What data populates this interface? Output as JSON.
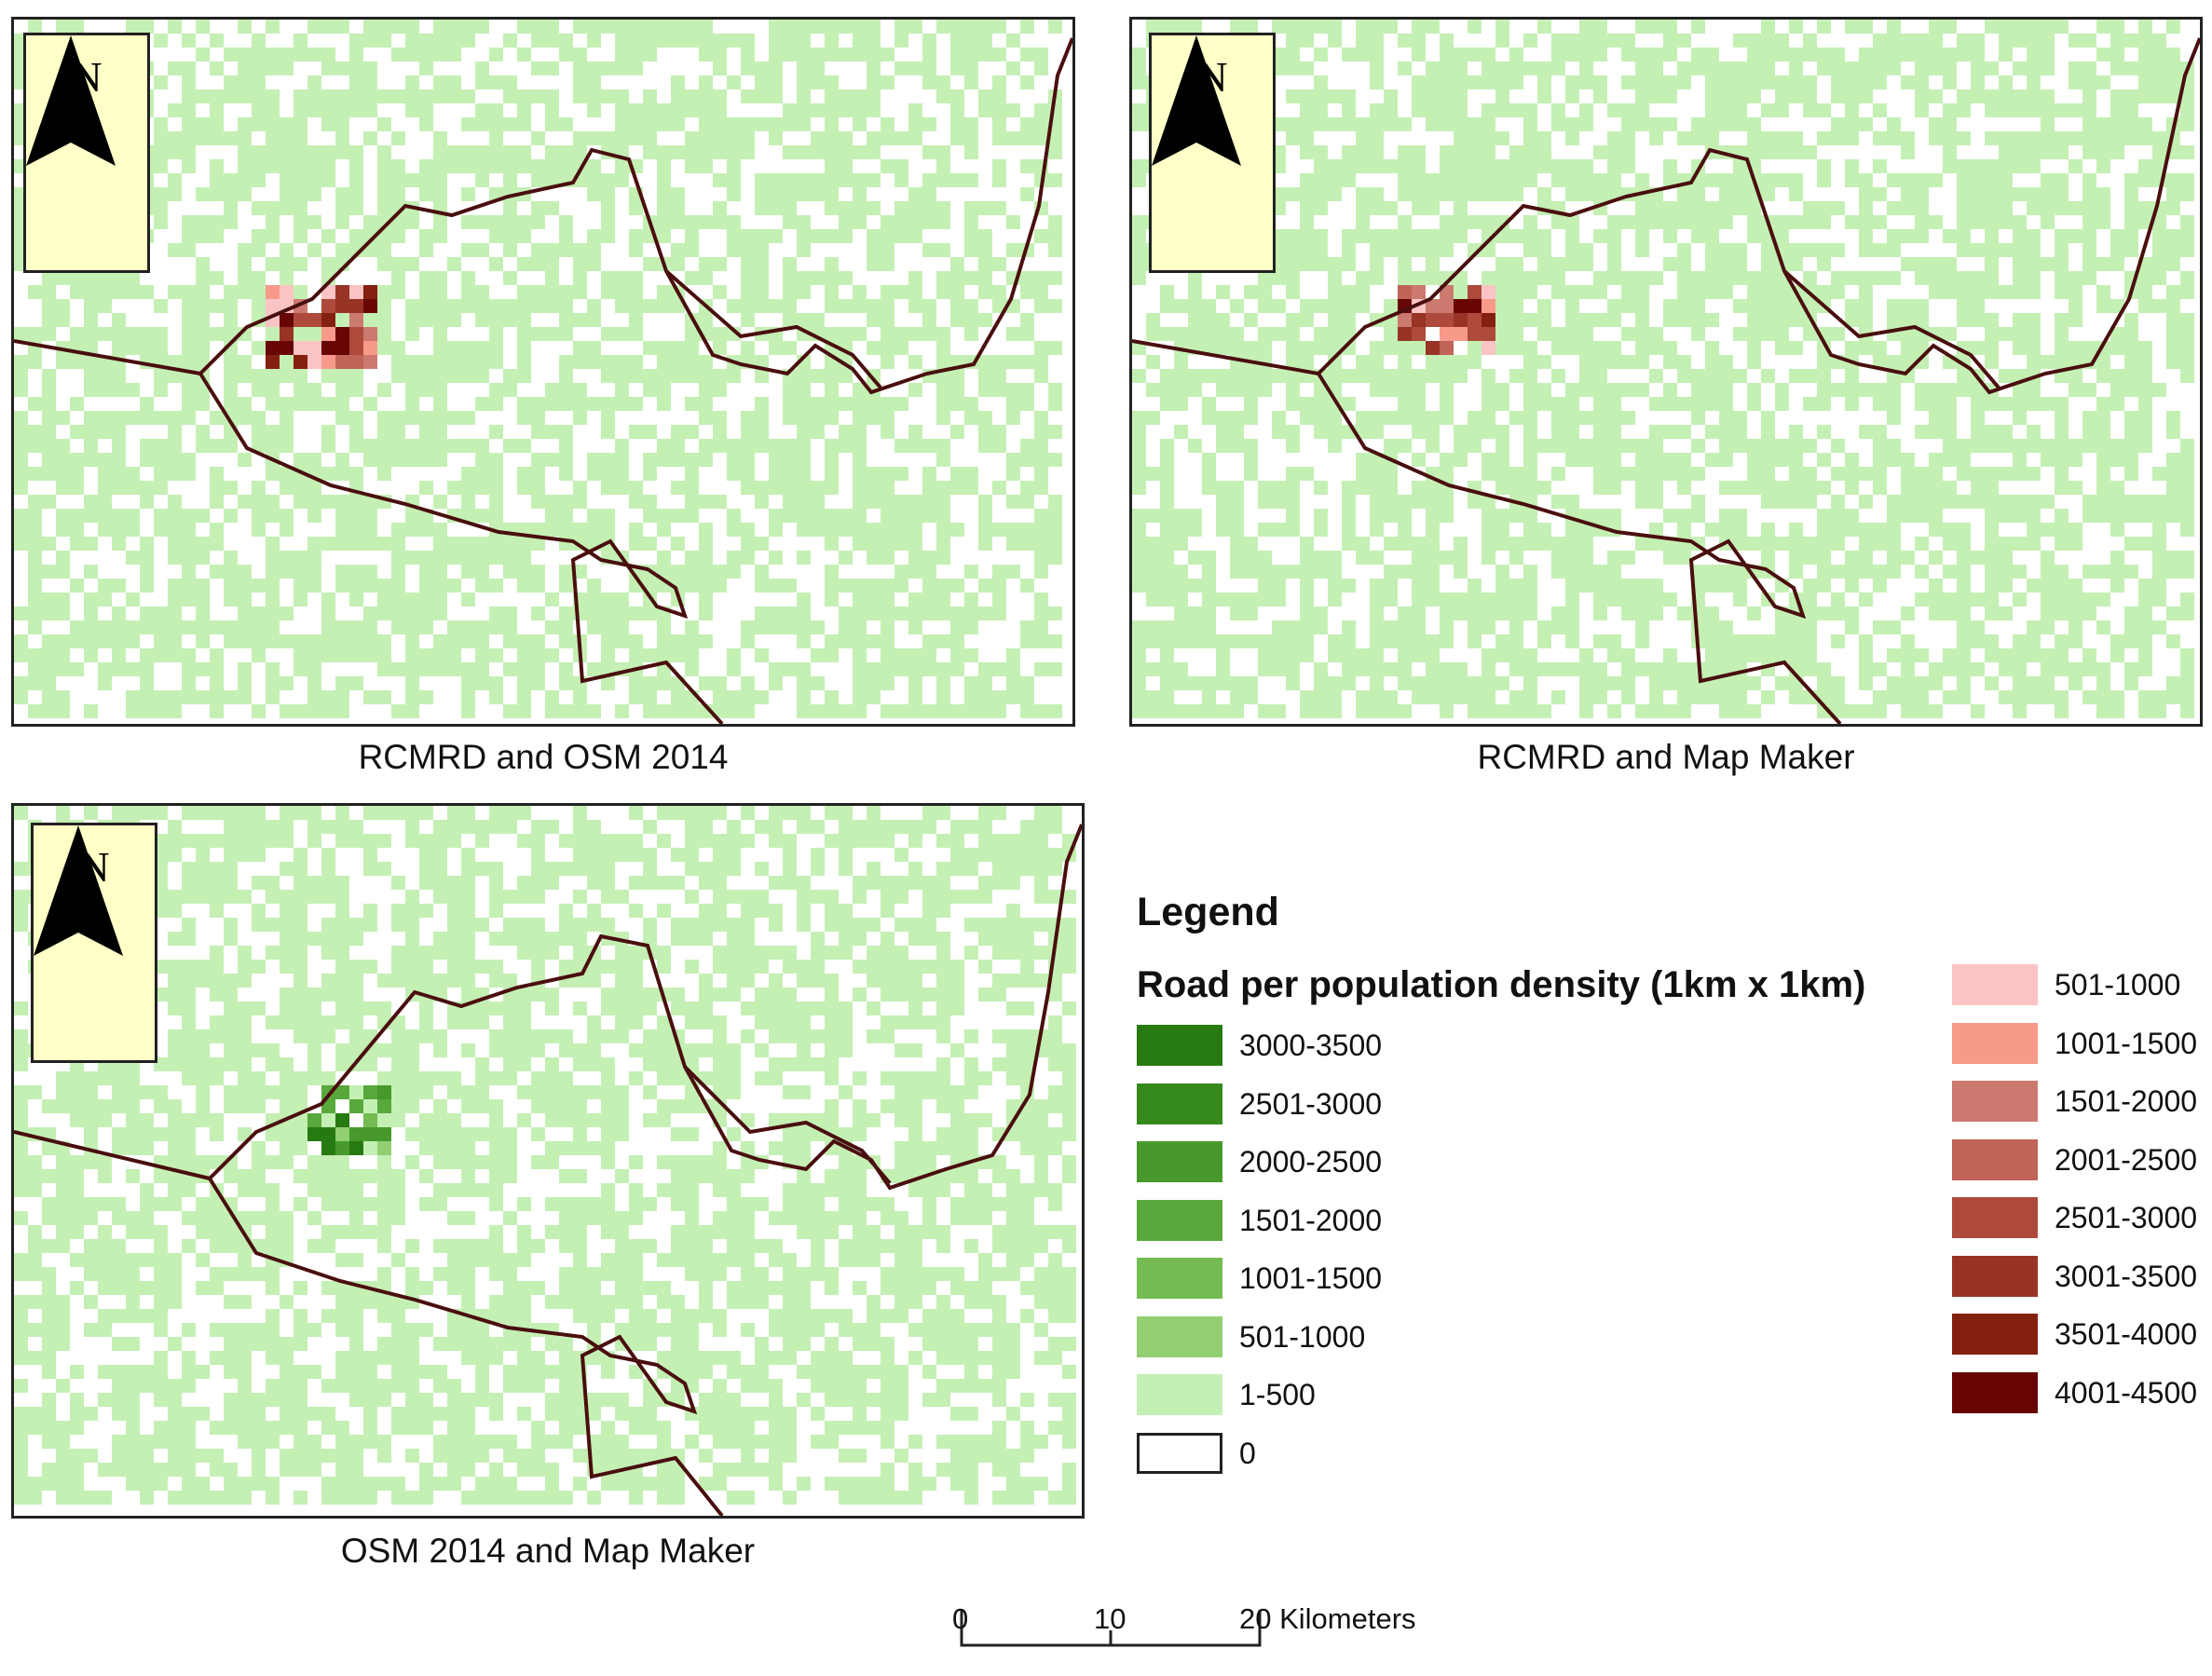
{
  "maps": [
    {
      "caption": "RCMRD and OSM 2014",
      "north": "N"
    },
    {
      "caption": "RCMRD and Map Maker",
      "north": "N"
    },
    {
      "caption": "OSM 2014 and Map Maker",
      "north": "N"
    }
  ],
  "legend": {
    "title": "Legend",
    "subtitle": "Road per population density (1km x 1km)",
    "green_classes": [
      {
        "label": "3000-3500",
        "color": "#267a0f"
      },
      {
        "label": "2501-3000",
        "color": "#368a1c"
      },
      {
        "label": "2000-2500",
        "color": "#46992a"
      },
      {
        "label": "1501-2000",
        "color": "#58a83c"
      },
      {
        "label": "1001-1500",
        "color": "#74bb52"
      },
      {
        "label": "501-1000",
        "color": "#92ce72"
      },
      {
        "label": "1-500",
        "color": "#c4f0b4"
      },
      {
        "label": "0",
        "color": "#ffffff"
      }
    ],
    "red_classes": [
      {
        "label": "501-1000",
        "color": "#fbc4c4"
      },
      {
        "label": "1001-1500",
        "color": "#f79a8a"
      },
      {
        "label": "1501-2000",
        "color": "#cc7a70"
      },
      {
        "label": "2001-2500",
        "color": "#c06458"
      },
      {
        "label": "2501-3000",
        "color": "#ad4a3c"
      },
      {
        "label": "3001-3500",
        "color": "#983426"
      },
      {
        "label": "3501-4000",
        "color": "#84200f"
      },
      {
        "label": "4001-4500",
        "color": "#680606"
      }
    ]
  },
  "scalebar": {
    "labels": [
      "0",
      "10",
      "20 Kilometers"
    ]
  },
  "colors": {
    "boundary": "#4a0e0e",
    "background_class": "#c4f0b4"
  }
}
